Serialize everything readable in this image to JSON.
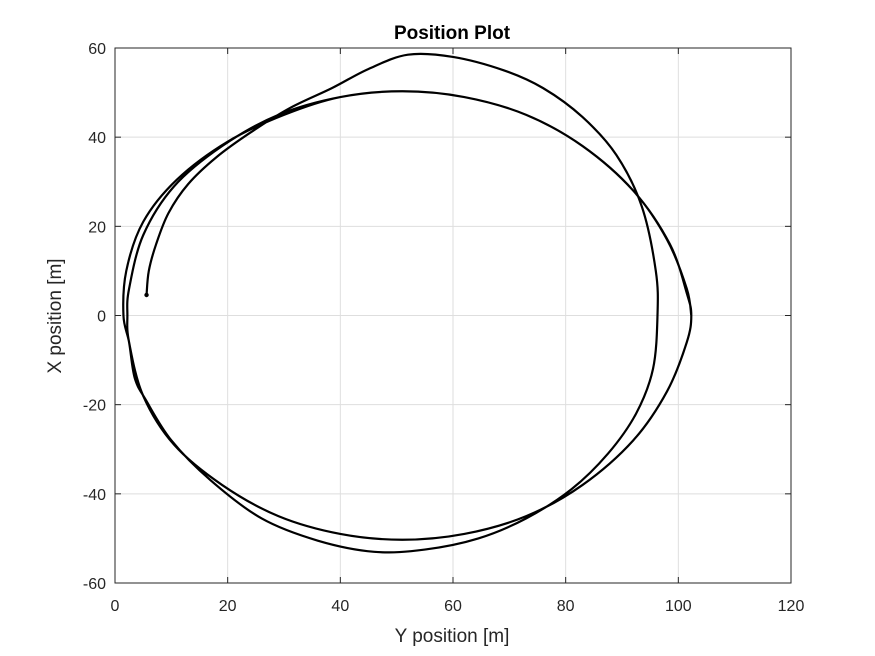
{
  "chart_data": {
    "type": "line",
    "title": "Position Plot",
    "xlabel": "Y position [m]",
    "ylabel": "X position [m]",
    "xlim": [
      0,
      120
    ],
    "ylim": [
      -60,
      60
    ],
    "xticks": [
      0,
      20,
      40,
      60,
      80,
      100,
      120
    ],
    "yticks": [
      -60,
      -40,
      -20,
      0,
      20,
      40,
      60
    ],
    "grid": true,
    "colors": {
      "line": "#000000",
      "grid": "#dedede",
      "axis": "#262626"
    },
    "series": [
      {
        "points": [
          [
            5.6,
            4.6
          ],
          [
            6.0,
            10
          ],
          [
            7.3,
            16
          ],
          [
            9.5,
            23
          ],
          [
            13,
            29.5
          ],
          [
            18,
            35.5
          ],
          [
            24,
            41
          ],
          [
            31,
            46.5
          ],
          [
            38.5,
            51
          ],
          [
            45,
            55.3
          ],
          [
            52,
            58.5
          ],
          [
            60,
            58
          ],
          [
            69,
            55
          ],
          [
            76,
            51
          ],
          [
            83,
            44.5
          ],
          [
            89,
            36
          ],
          [
            93.5,
            24.5
          ],
          [
            96,
            10
          ],
          [
            96.3,
            0
          ],
          [
            95.5,
            -12
          ],
          [
            92.5,
            -22
          ],
          [
            87.5,
            -31
          ],
          [
            81,
            -39
          ],
          [
            73,
            -45.5
          ],
          [
            64.5,
            -50
          ],
          [
            55,
            -52.5
          ],
          [
            46,
            -53
          ],
          [
            36,
            -50.5
          ],
          [
            26,
            -45.5
          ],
          [
            17,
            -37
          ],
          [
            10,
            -28
          ],
          [
            5.5,
            -19
          ],
          [
            3.5,
            -14
          ],
          [
            2.5,
            -6
          ],
          [
            1.5,
            0
          ],
          [
            2.0,
            10
          ],
          [
            5.0,
            21
          ],
          [
            11,
            30.5
          ],
          [
            20,
            39
          ],
          [
            30,
            45
          ],
          [
            40,
            49
          ],
          [
            51,
            50.3
          ],
          [
            62,
            49
          ],
          [
            73,
            45
          ],
          [
            83,
            38
          ],
          [
            92,
            28
          ],
          [
            98.5,
            16
          ],
          [
            101.5,
            5
          ],
          [
            102.3,
            0
          ],
          [
            101.5,
            -6
          ],
          [
            98,
            -17
          ],
          [
            92,
            -28
          ],
          [
            83,
            -38
          ],
          [
            73,
            -45
          ],
          [
            62,
            -49
          ],
          [
            51,
            -50.3
          ],
          [
            40,
            -49
          ],
          [
            29,
            -45
          ],
          [
            19,
            -38
          ],
          [
            10.5,
            -29
          ],
          [
            5,
            -18
          ],
          [
            2.5,
            -6
          ],
          [
            2.2,
            0
          ],
          [
            2.5,
            6
          ],
          [
            5,
            18
          ],
          [
            10.5,
            29
          ],
          [
            19,
            38
          ],
          [
            29,
            45
          ],
          [
            40,
            49
          ],
          [
            51,
            50.3
          ],
          [
            62,
            49
          ],
          [
            73,
            45
          ],
          [
            83,
            38
          ],
          [
            92,
            28
          ],
          [
            98,
            17
          ],
          [
            101.5,
            6
          ],
          [
            102.3,
            0
          ]
        ]
      }
    ]
  }
}
